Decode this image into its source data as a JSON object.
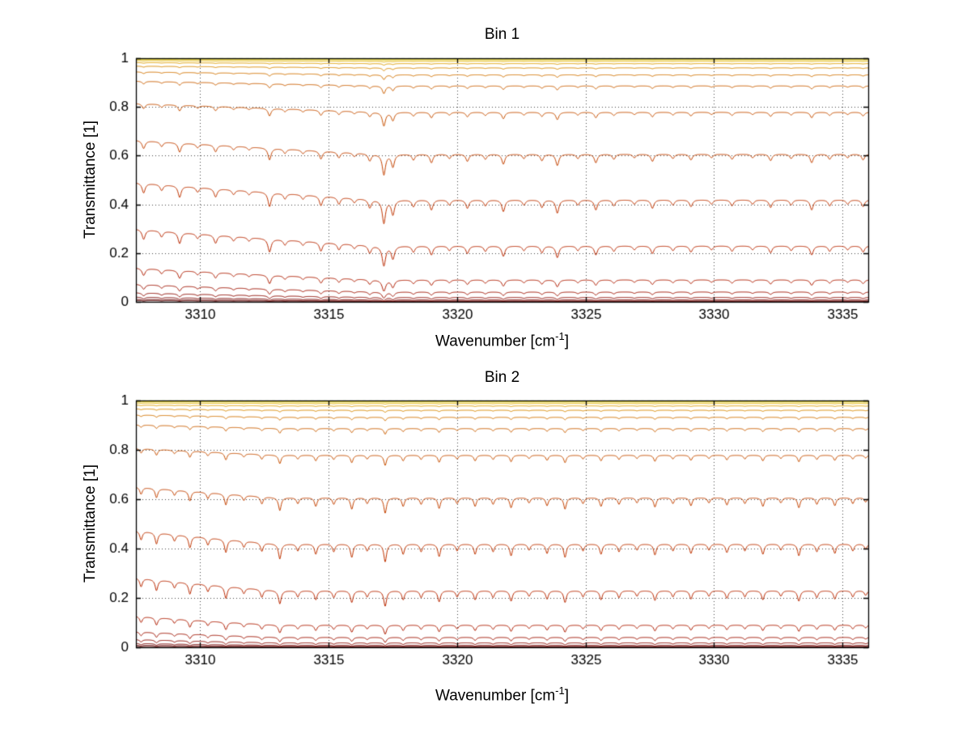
{
  "figure": {
    "background": "#ffffff"
  },
  "chart_data": [
    {
      "type": "line",
      "title": "Bin 1",
      "xlabel": "Wavenumber [cm⁻¹]",
      "xlabel_prefix": "Wavenumber [cm",
      "xlabel_sup": "-1",
      "xlabel_suffix": "]",
      "ylabel": "Transmittance [1]",
      "xlim": [
        3307.5,
        3336
      ],
      "ylim": [
        0,
        1
      ],
      "xticks": [
        3310,
        3315,
        3320,
        3325,
        3330,
        3335
      ],
      "yticks": [
        0,
        0.2,
        0.4,
        0.6,
        0.8,
        1
      ],
      "grid": true,
      "description": "Family of transmittance spectra for increasing absorber amount; baselines near 1 (yellow) down to near 0 (dark red), with common absorption dips.",
      "slope": {
        "amount": 0.18,
        "knee": 3317
      },
      "gamma": 0.07,
      "absorption_lines": [
        [
          3307.8,
          0.1
        ],
        [
          3308.5,
          0.06
        ],
        [
          3309.2,
          0.12
        ],
        [
          3309.9,
          0.05
        ],
        [
          3310.6,
          0.09
        ],
        [
          3311.3,
          0.05
        ],
        [
          3311.9,
          0.04
        ],
        [
          3312.7,
          0.16
        ],
        [
          3313.3,
          0.06
        ],
        [
          3314.0,
          0.05
        ],
        [
          3314.7,
          0.11
        ],
        [
          3315.4,
          0.08
        ],
        [
          3316.0,
          0.05
        ],
        [
          3316.6,
          0.1
        ],
        [
          3317.15,
          0.3
        ],
        [
          3317.5,
          0.18
        ],
        [
          3318.3,
          0.08
        ],
        [
          3319.0,
          0.12
        ],
        [
          3319.7,
          0.06
        ],
        [
          3320.4,
          0.1
        ],
        [
          3321.1,
          0.07
        ],
        [
          3321.8,
          0.14
        ],
        [
          3322.6,
          0.06
        ],
        [
          3323.3,
          0.09
        ],
        [
          3323.9,
          0.16
        ],
        [
          3324.7,
          0.06
        ],
        [
          3325.4,
          0.12
        ],
        [
          3326.1,
          0.07
        ],
        [
          3326.9,
          0.05
        ],
        [
          3327.6,
          0.1
        ],
        [
          3328.4,
          0.06
        ],
        [
          3329.1,
          0.08
        ],
        [
          3329.9,
          0.05
        ],
        [
          3330.7,
          0.07
        ],
        [
          3331.5,
          0.05
        ],
        [
          3332.2,
          0.09
        ],
        [
          3333.0,
          0.06
        ],
        [
          3333.8,
          0.12
        ],
        [
          3334.5,
          0.07
        ],
        [
          3335.2,
          0.05
        ],
        [
          3335.8,
          0.08
        ]
      ],
      "series": [
        {
          "tau": 0.0015,
          "color": "#dde000"
        },
        {
          "tau": 0.003,
          "color": "#e0d400"
        },
        {
          "tau": 0.006,
          "color": "#e2c400"
        },
        {
          "tau": 0.012,
          "color": "#e2b200"
        },
        {
          "tau": 0.022,
          "color": "#e0a000"
        },
        {
          "tau": 0.04,
          "color": "#da8a00"
        },
        {
          "tau": 0.07,
          "color": "#d47400"
        },
        {
          "tau": 0.12,
          "color": "#cc5f00"
        },
        {
          "tau": 0.25,
          "color": "#c85000"
        },
        {
          "tau": 0.5,
          "color": "#c44200"
        },
        {
          "tau": 0.87,
          "color": "#c03400"
        },
        {
          "tau": 1.47,
          "color": "#ba2800"
        },
        {
          "tau": 2.4,
          "color": "#b01c00"
        },
        {
          "tau": 3.2,
          "color": "#a01200"
        },
        {
          "tau": 4.0,
          "color": "#8e0a00"
        },
        {
          "tau": 4.8,
          "color": "#7a0400"
        },
        {
          "tau": 5.6,
          "color": "#660000"
        },
        {
          "tau": 6.4,
          "color": "#520000"
        }
      ],
      "cap_line": {
        "y": 0.9985,
        "color": "#00a890",
        "dash": [
          4,
          4
        ]
      }
    },
    {
      "type": "line",
      "title": "Bin 2",
      "xlabel": "Wavenumber [cm⁻¹]",
      "xlabel_prefix": "Wavenumber [cm",
      "xlabel_sup": "-1",
      "xlabel_suffix": "]",
      "ylabel": "Transmittance [1]",
      "xlim": [
        3307.5,
        3336
      ],
      "ylim": [
        0,
        1
      ],
      "xticks": [
        3310,
        3315,
        3320,
        3325,
        3330,
        3335
      ],
      "yticks": [
        0,
        0.2,
        0.4,
        0.6,
        0.8,
        1
      ],
      "grid": true,
      "description": "Same family of transmittance spectra for a second spectral bin; slightly different line strengths and weaker left-edge slope.",
      "slope": {
        "amount": 0.14,
        "knee": 3313
      },
      "gamma": 0.06,
      "absorption_lines": [
        [
          3307.7,
          0.09
        ],
        [
          3308.3,
          0.12
        ],
        [
          3309.0,
          0.07
        ],
        [
          3309.6,
          0.13
        ],
        [
          3310.3,
          0.08
        ],
        [
          3311.0,
          0.15
        ],
        [
          3311.7,
          0.07
        ],
        [
          3312.4,
          0.1
        ],
        [
          3313.1,
          0.18
        ],
        [
          3313.8,
          0.08
        ],
        [
          3314.5,
          0.12
        ],
        [
          3315.2,
          0.09
        ],
        [
          3315.9,
          0.16
        ],
        [
          3316.5,
          0.08
        ],
        [
          3317.2,
          0.22
        ],
        [
          3317.9,
          0.12
        ],
        [
          3318.6,
          0.09
        ],
        [
          3319.3,
          0.15
        ],
        [
          3320.0,
          0.08
        ],
        [
          3320.7,
          0.12
        ],
        [
          3321.4,
          0.09
        ],
        [
          3322.1,
          0.14
        ],
        [
          3322.8,
          0.07
        ],
        [
          3323.5,
          0.11
        ],
        [
          3324.2,
          0.16
        ],
        [
          3324.9,
          0.08
        ],
        [
          3325.6,
          0.12
        ],
        [
          3326.3,
          0.09
        ],
        [
          3327.0,
          0.07
        ],
        [
          3327.7,
          0.13
        ],
        [
          3328.4,
          0.08
        ],
        [
          3329.1,
          0.11
        ],
        [
          3329.8,
          0.07
        ],
        [
          3330.5,
          0.1
        ],
        [
          3331.2,
          0.08
        ],
        [
          3331.9,
          0.12
        ],
        [
          3332.6,
          0.07
        ],
        [
          3333.3,
          0.14
        ],
        [
          3334.0,
          0.09
        ],
        [
          3334.7,
          0.11
        ],
        [
          3335.4,
          0.08
        ],
        [
          3335.9,
          0.06
        ]
      ],
      "series": [
        {
          "tau": 0.0015,
          "color": "#dde000"
        },
        {
          "tau": 0.003,
          "color": "#e0d400"
        },
        {
          "tau": 0.006,
          "color": "#e2c400"
        },
        {
          "tau": 0.012,
          "color": "#e2b200"
        },
        {
          "tau": 0.022,
          "color": "#e0a000"
        },
        {
          "tau": 0.04,
          "color": "#da8a00"
        },
        {
          "tau": 0.07,
          "color": "#d47400"
        },
        {
          "tau": 0.12,
          "color": "#cc5f00"
        },
        {
          "tau": 0.25,
          "color": "#c85000"
        },
        {
          "tau": 0.5,
          "color": "#c44200"
        },
        {
          "tau": 0.87,
          "color": "#c03400"
        },
        {
          "tau": 1.47,
          "color": "#ba2800"
        },
        {
          "tau": 2.4,
          "color": "#b01c00"
        },
        {
          "tau": 3.2,
          "color": "#a01200"
        },
        {
          "tau": 4.0,
          "color": "#8e0a00"
        },
        {
          "tau": 4.8,
          "color": "#7a0400"
        },
        {
          "tau": 5.6,
          "color": "#660000"
        },
        {
          "tau": 6.4,
          "color": "#520000"
        }
      ],
      "cap_line": {
        "y": 0.9985,
        "color": "#00a890",
        "dash": [
          4,
          4
        ]
      }
    }
  ]
}
